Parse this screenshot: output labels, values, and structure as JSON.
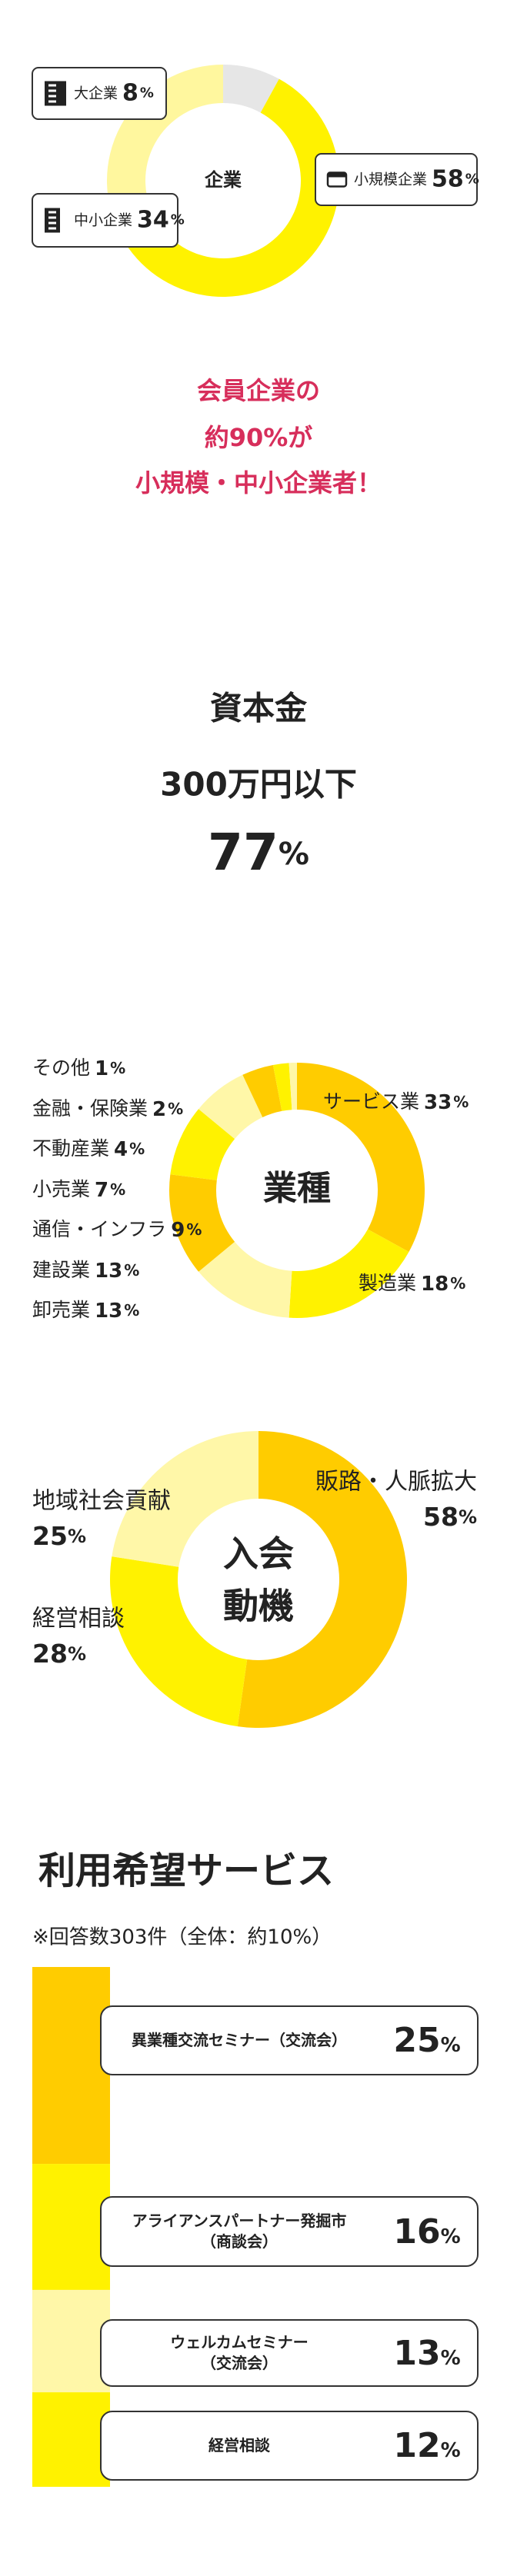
{
  "headline": {
    "lines": [
      "会員企業の",
      "約90%が",
      "小規模・中小企業者！"
    ]
  },
  "capital": {
    "lines": [
      "資本金",
      "300万円以下"
    ],
    "value": 77,
    "unit": "%"
  },
  "chart_data": [
    {
      "type": "donut",
      "center_label": [
        "企業"
      ],
      "categories": [
        "大企業",
        "小規模企業",
        "中小企業"
      ],
      "values": [
        8,
        58,
        34
      ],
      "colors": [
        "#e6e6e6",
        "#fff200",
        "#fff79e"
      ],
      "unit": "%"
    },
    {
      "type": "donut",
      "center_label": [
        "業種"
      ],
      "categories": [
        "サービス業",
        "製造業",
        "卸売業",
        "建設業",
        "通信・インフラ",
        "小売業",
        "不動産業",
        "金融・保険業",
        "その他"
      ],
      "values": [
        33,
        18,
        13,
        13,
        9,
        7,
        4,
        2,
        1
      ],
      "colors": [
        "#ffcc00",
        "#fff200",
        "#fff7a8",
        "#ffcc00",
        "#fff200",
        "#fff7a8",
        "#ffcc00",
        "#fff200",
        "#fff7a8"
      ],
      "unit": "%"
    },
    {
      "type": "donut",
      "center_label": [
        "入会",
        "動機"
      ],
      "categories": [
        "販路・人脈拡大",
        "経営相談",
        "地域社会貢献"
      ],
      "values": [
        58,
        28,
        25
      ],
      "colors": [
        "#ffcc00",
        "#fff200",
        "#fff7a8"
      ],
      "unit": "%"
    },
    {
      "type": "bar",
      "title": "利用希望サービス",
      "subtitle": "※回答数303件（全体：約10%）",
      "categories": [
        "異業種交流セミナー（交流会）",
        "アライアンスパートナー発掘市\n（商談会）",
        "ウェルカムセミナー\n（交流会）",
        "経営相談"
      ],
      "values": [
        25,
        16,
        13,
        12
      ],
      "colors": [
        "#ffcc00",
        "#fff200",
        "#fff7a8",
        "#fff200"
      ],
      "unit": "%"
    }
  ]
}
